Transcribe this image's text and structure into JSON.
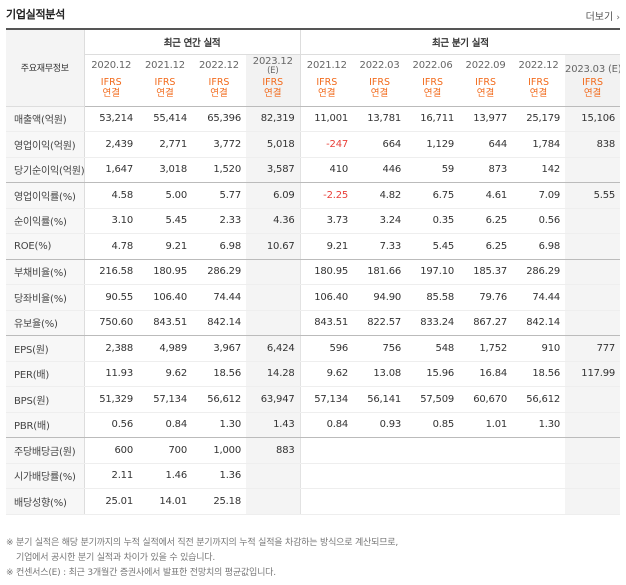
{
  "header": {
    "title": "기업실적분석",
    "more_label": "더보기",
    "more_icon": "chevron-right-icon"
  },
  "table": {
    "row_header": "주요재무정보",
    "annual_group": "최근 연간 실적",
    "quarter_group": "최근 분기 실적",
    "annual_periods": [
      {
        "date": "2020.12",
        "sub": ""
      },
      {
        "date": "2021.12",
        "sub": ""
      },
      {
        "date": "2022.12",
        "sub": ""
      },
      {
        "date": "2023.12",
        "sub": "(E)"
      }
    ],
    "quarter_periods": [
      {
        "date": "2021.12",
        "sub": ""
      },
      {
        "date": "2022.03",
        "sub": ""
      },
      {
        "date": "2022.06",
        "sub": ""
      },
      {
        "date": "2022.09",
        "sub": ""
      },
      {
        "date": "2022.12",
        "sub": ""
      },
      {
        "date": "2023.03 (E)",
        "sub": ""
      }
    ],
    "ifrs_label": "IFRS",
    "consolidated_label": "연결",
    "rows": [
      {
        "label": "매출액(억원)",
        "values": [
          "53,214",
          "55,414",
          "65,396",
          "82,319",
          "11,001",
          "13,781",
          "16,711",
          "13,977",
          "25,179",
          "15,106"
        ]
      },
      {
        "label": "영업이익(억원)",
        "values": [
          "2,439",
          "2,771",
          "3,772",
          "5,018",
          "-247",
          "664",
          "1,129",
          "644",
          "1,784",
          "838"
        ]
      },
      {
        "label": "당기순이익(억원)",
        "values": [
          "1,647",
          "3,018",
          "1,520",
          "3,587",
          "410",
          "446",
          "59",
          "873",
          "142",
          ""
        ]
      },
      {
        "label": "영업이익률(%)",
        "values": [
          "4.58",
          "5.00",
          "5.77",
          "6.09",
          "-2.25",
          "4.82",
          "6.75",
          "4.61",
          "7.09",
          "5.55"
        ]
      },
      {
        "label": "순이익률(%)",
        "values": [
          "3.10",
          "5.45",
          "2.33",
          "4.36",
          "3.73",
          "3.24",
          "0.35",
          "6.25",
          "0.56",
          ""
        ]
      },
      {
        "label": "ROE(%)",
        "values": [
          "4.78",
          "9.21",
          "6.98",
          "10.67",
          "9.21",
          "7.33",
          "5.45",
          "6.25",
          "6.98",
          ""
        ]
      },
      {
        "label": "부채비율(%)",
        "values": [
          "216.58",
          "180.95",
          "286.29",
          "",
          "180.95",
          "181.66",
          "197.10",
          "185.37",
          "286.29",
          ""
        ]
      },
      {
        "label": "당좌비율(%)",
        "values": [
          "90.55",
          "106.40",
          "74.44",
          "",
          "106.40",
          "94.90",
          "85.58",
          "79.76",
          "74.44",
          ""
        ]
      },
      {
        "label": "유보율(%)",
        "values": [
          "750.60",
          "843.51",
          "842.14",
          "",
          "843.51",
          "822.57",
          "833.24",
          "867.27",
          "842.14",
          ""
        ]
      },
      {
        "label": "EPS(원)",
        "values": [
          "2,388",
          "4,989",
          "3,967",
          "6,424",
          "596",
          "756",
          "548",
          "1,752",
          "910",
          "777"
        ]
      },
      {
        "label": "PER(배)",
        "values": [
          "11.93",
          "9.62",
          "18.56",
          "14.28",
          "9.62",
          "13.08",
          "15.96",
          "16.84",
          "18.56",
          "117.99"
        ]
      },
      {
        "label": "BPS(원)",
        "values": [
          "51,329",
          "57,134",
          "56,612",
          "63,947",
          "57,134",
          "56,141",
          "57,509",
          "60,670",
          "56,612",
          ""
        ]
      },
      {
        "label": "PBR(배)",
        "values": [
          "0.56",
          "0.84",
          "1.30",
          "1.43",
          "0.84",
          "0.93",
          "0.85",
          "1.01",
          "1.30",
          ""
        ]
      },
      {
        "label": "주당배당금(원)",
        "values": [
          "600",
          "700",
          "1,000",
          "883",
          "",
          "",
          "",
          "",
          "",
          ""
        ]
      },
      {
        "label": "시가배당률(%)",
        "values": [
          "2.11",
          "1.46",
          "1.36",
          "",
          "",
          "",
          "",
          "",
          "",
          ""
        ]
      },
      {
        "label": "배당성향(%)",
        "values": [
          "25.01",
          "14.01",
          "25.18",
          "",
          "",
          "",
          "",
          "",
          "",
          ""
        ]
      }
    ]
  },
  "notes": [
    "※ 분기 실적은 해당 분기까지의 누적 실적에서 직전 분기까지의 누적 실적을 차감하는 방식으로 계산되므로,",
    "기업에서 공시한 분기 실적과 차이가 있을 수 있습니다.",
    "※ 컨센서스(E) : 최근 3개월간 증권사에서 발표한 전망치의 평균값입니다."
  ],
  "colors": {
    "ifrs": "#f26b1d",
    "negative": "#e8403a",
    "estimate_bg": "#f4f4f4"
  }
}
